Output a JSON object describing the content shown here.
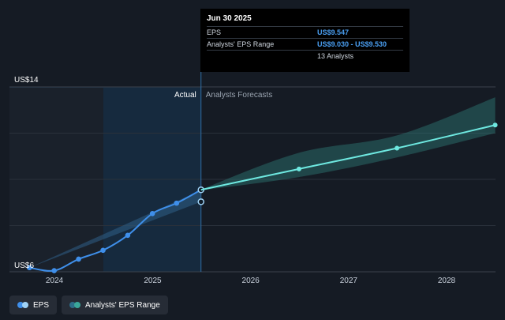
{
  "chart_data": {
    "type": "line",
    "y_axis": {
      "min_label": "US$6",
      "max_label": "US$14",
      "ylim": [
        6,
        14
      ]
    },
    "x_ticks": [
      "2024",
      "2025",
      "2026",
      "2027",
      "2028"
    ],
    "region_labels": {
      "actual": "Actual",
      "forecast": "Analysts Forecasts"
    },
    "series": [
      {
        "name": "EPS",
        "color": "#3f8fea",
        "points": [
          {
            "x": "2023-09-30",
            "y": 6.18
          },
          {
            "x": "2023-12-31",
            "y": 6.05
          },
          {
            "x": "2024-03-31",
            "y": 6.55
          },
          {
            "x": "2024-06-30",
            "y": 6.93
          },
          {
            "x": "2024-09-30",
            "y": 7.58
          },
          {
            "x": "2024-12-31",
            "y": 8.52
          },
          {
            "x": "2025-03-31",
            "y": 8.97
          },
          {
            "x": "2025-06-30",
            "y": 9.547
          }
        ]
      },
      {
        "name": "EPS forecast",
        "color": "#6ee8e0",
        "points": [
          {
            "x": "2025-06-30",
            "y": 9.547
          },
          {
            "x": "2026-06-30",
            "y": 10.45
          },
          {
            "x": "2027-06-30",
            "y": 11.35
          },
          {
            "x": "2028-06-30",
            "y": 12.35
          }
        ]
      }
    ],
    "historical_range": [
      {
        "x": "2023-09-30",
        "low": 6.18,
        "high": 6.18
      },
      {
        "x": "2025-06-30",
        "low": 9.03,
        "high": 9.53
      }
    ],
    "forecast_range": [
      {
        "x": "2025-06-30",
        "low": 9.53,
        "high": 9.56
      },
      {
        "x": "2026-06-30",
        "low": 10.1,
        "high": 11.15
      },
      {
        "x": "2027-06-30",
        "low": 10.95,
        "high": 11.9
      },
      {
        "x": "2028-06-30",
        "low": 12.0,
        "high": 13.55
      }
    ],
    "extra_markers": [
      {
        "x": "2025-06-30",
        "y": 9.03
      }
    ]
  },
  "tooltip": {
    "date": "Jun 30 2025",
    "rows": [
      {
        "label": "EPS",
        "value": "US$9.547"
      },
      {
        "label": "Analysts' EPS Range",
        "value": "US$9.030 - US$9.530"
      },
      {
        "label": "",
        "value": "13 Analysts"
      }
    ]
  },
  "legend": {
    "eps_label": "EPS",
    "range_label": "Analysts' EPS Range",
    "eps_colors": [
      "#3f8fea",
      "#9fd2f6"
    ],
    "range_colors": [
      "#2d6e8a",
      "#3aa79a"
    ]
  }
}
